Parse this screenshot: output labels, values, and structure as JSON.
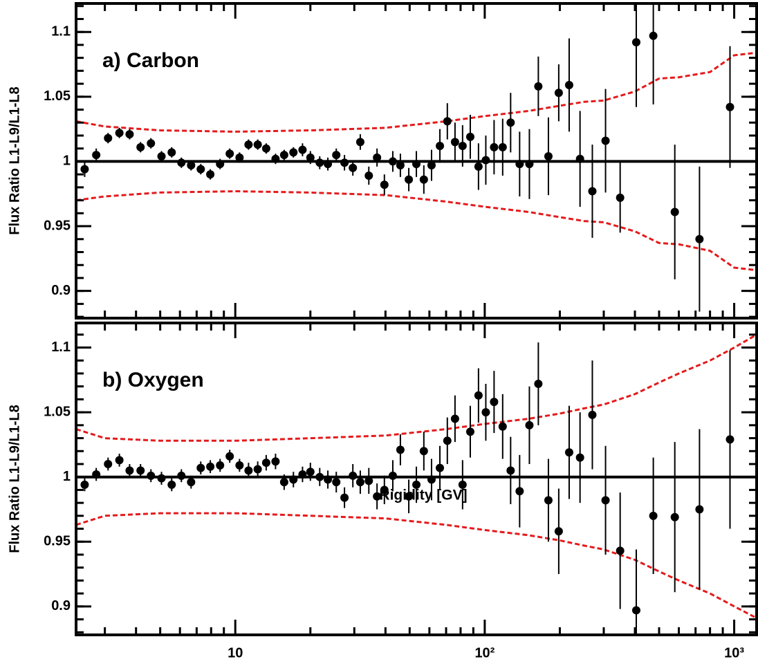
{
  "chart_data": [
    {
      "type": "scatter",
      "title": "a) Carbon",
      "y_label": "Flux Ratio L1-L9/L1-L8",
      "color": "#000000",
      "xscale": "log",
      "reference_line": 1,
      "x": [
        2.49,
        2.77,
        3.09,
        3.43,
        3.77,
        4.17,
        4.59,
        5.06,
        5.56,
        6.08,
        6.65,
        7.27,
        7.94,
        8.69,
        9.5,
        10.4,
        11.3,
        12.3,
        13.3,
        14.5,
        15.7,
        17.1,
        18.6,
        20.0,
        21.8,
        23.5,
        25.4,
        27.4,
        29.6,
        31.7,
        34.3,
        37.0,
        39.6,
        42.8,
        45.9,
        49.6,
        53.2,
        57.0,
        61.2,
        66.1,
        70.8,
        76.0,
        81.5,
        87.5,
        94.4,
        101,
        109,
        118,
        127,
        138,
        151,
        164,
        180,
        198,
        218,
        241,
        270,
        305,
        349,
        405,
        474,
        578,
        726,
        962
      ],
      "values": [
        0.994,
        1.005,
        1.018,
        1.022,
        1.021,
        1.011,
        1.014,
        1.004,
        1.007,
        0.999,
        0.997,
        0.994,
        0.99,
        0.998,
        1.006,
        1.003,
        1.013,
        1.013,
        1.01,
        1.002,
        1.005,
        1.007,
        1.009,
        1.003,
        0.999,
        0.998,
        1.005,
        0.999,
        0.995,
        1.015,
        0.989,
        1.003,
        0.982,
        1.0,
        0.997,
        0.986,
        0.998,
        0.986,
        0.997,
        1.012,
        1.031,
        1.015,
        1.012,
        1.019,
        0.996,
        1.001,
        1.011,
        1.011,
        1.03,
        0.998,
        0.998,
        1.058,
        1.004,
        1.053,
        1.059,
        1.002,
        0.977,
        1.016,
        0.972,
        1.092,
        1.097,
        0.961,
        0.94,
        1.042
      ],
      "errors": [
        0.006,
        0.005,
        0.004,
        0.004,
        0.004,
        0.004,
        0.004,
        0.004,
        0.004,
        0.004,
        0.004,
        0.004,
        0.004,
        0.004,
        0.004,
        0.004,
        0.004,
        0.004,
        0.004,
        0.004,
        0.004,
        0.004,
        0.005,
        0.005,
        0.005,
        0.005,
        0.005,
        0.006,
        0.006,
        0.006,
        0.007,
        0.007,
        0.008,
        0.008,
        0.009,
        0.009,
        0.01,
        0.011,
        0.012,
        0.013,
        0.014,
        0.015,
        0.016,
        0.017,
        0.018,
        0.019,
        0.021,
        0.022,
        0.023,
        0.025,
        0.027,
        0.023,
        0.03,
        0.022,
        0.036,
        0.037,
        0.036,
        0.04,
        0.027,
        0.05,
        0.053,
        0.052,
        0.056,
        0.047
      ],
      "bands": [
        {
          "color": "#e41a1c",
          "x": [
            2.3,
            3,
            5,
            10,
            20,
            40,
            70,
            100,
            150,
            200,
            250,
            300,
            400,
            500,
            600,
            800,
            1000,
            1230
          ],
          "values": [
            1.031,
            1.027,
            1.024,
            1.023,
            1.024,
            1.026,
            1.031,
            1.035,
            1.039,
            1.043,
            1.046,
            1.047,
            1.054,
            1.064,
            1.065,
            1.069,
            1.082,
            1.084
          ]
        },
        {
          "color": "#e41a1c",
          "x": [
            2.3,
            3,
            5,
            10,
            20,
            40,
            70,
            100,
            150,
            200,
            250,
            300,
            400,
            500,
            600,
            800,
            1000,
            1230
          ],
          "values": [
            0.97,
            0.973,
            0.976,
            0.977,
            0.976,
            0.974,
            0.969,
            0.965,
            0.961,
            0.957,
            0.954,
            0.953,
            0.946,
            0.937,
            0.936,
            0.931,
            0.918,
            0.916
          ]
        }
      ],
      "xlim": [
        2.3,
        1230
      ],
      "xticks": [
        10,
        100,
        1000
      ],
      "ylim": [
        0.879,
        1.122
      ],
      "yticks": [
        0.9,
        0.95,
        1,
        1.05,
        1.1
      ]
    },
    {
      "type": "scatter",
      "title": "b) Oxygen",
      "y_label": "Flux Ratio L1-L9/L1-L8",
      "x_label": "Rigidity [GV]",
      "color": "#000000",
      "xscale": "log",
      "reference_line": 1,
      "x": [
        2.49,
        2.77,
        3.09,
        3.43,
        3.77,
        4.17,
        4.59,
        5.06,
        5.56,
        6.08,
        6.65,
        7.27,
        7.94,
        8.69,
        9.5,
        10.4,
        11.3,
        12.3,
        13.3,
        14.5,
        15.7,
        17.1,
        18.6,
        20.0,
        21.8,
        23.5,
        25.4,
        27.4,
        29.6,
        31.7,
        34.3,
        37.0,
        39.6,
        42.8,
        45.9,
        49.6,
        53.2,
        57.0,
        61.2,
        66.1,
        70.8,
        76.0,
        81.5,
        87.5,
        94.4,
        101,
        109,
        118,
        127,
        138,
        151,
        164,
        180,
        198,
        218,
        241,
        270,
        305,
        349,
        405,
        474,
        578,
        726,
        962
      ],
      "values": [
        0.994,
        1.002,
        1.01,
        1.013,
        1.005,
        1.005,
        1.001,
        0.999,
        0.994,
        1.001,
        0.996,
        1.007,
        1.008,
        1.009,
        1.016,
        1.009,
        1.005,
        1.006,
        1.011,
        1.012,
        0.996,
        0.998,
        1.002,
        1.004,
        1.0,
        0.998,
        0.996,
        0.984,
        1.001,
        0.996,
        0.997,
        0.985,
        0.99,
        1.001,
        1.021,
        0.985,
        0.994,
        1.02,
        0.998,
        1.007,
        1.028,
        1.045,
        0.994,
        1.035,
        1.063,
        1.05,
        1.058,
        1.039,
        1.005,
        0.989,
        1.04,
        1.072,
        0.982,
        0.958,
        1.019,
        1.015,
        1.048,
        0.982,
        0.943,
        0.897,
        0.97,
        0.969,
        0.975,
        1.029
      ],
      "errors": [
        0.005,
        0.005,
        0.005,
        0.005,
        0.005,
        0.005,
        0.005,
        0.005,
        0.005,
        0.005,
        0.005,
        0.005,
        0.005,
        0.005,
        0.005,
        0.005,
        0.006,
        0.006,
        0.006,
        0.006,
        0.006,
        0.006,
        0.006,
        0.007,
        0.007,
        0.007,
        0.008,
        0.008,
        0.009,
        0.009,
        0.01,
        0.01,
        0.011,
        0.012,
        0.012,
        0.013,
        0.014,
        0.015,
        0.016,
        0.017,
        0.018,
        0.018,
        0.019,
        0.02,
        0.021,
        0.022,
        0.024,
        0.025,
        0.026,
        0.028,
        0.03,
        0.032,
        0.032,
        0.033,
        0.036,
        0.035,
        0.042,
        0.042,
        0.045,
        0.047,
        0.045,
        0.058,
        0.062,
        0.069
      ],
      "bands": [
        {
          "color": "#e41a1c",
          "x": [
            2.3,
            3,
            5,
            10,
            20,
            40,
            70,
            100,
            150,
            200,
            250,
            300,
            400,
            500,
            600,
            800,
            1000,
            1230
          ],
          "values": [
            1.037,
            1.03,
            1.028,
            1.028,
            1.03,
            1.032,
            1.037,
            1.041,
            1.045,
            1.049,
            1.053,
            1.056,
            1.064,
            1.073,
            1.08,
            1.09,
            1.1,
            1.11
          ]
        },
        {
          "color": "#e41a1c",
          "x": [
            2.3,
            3,
            5,
            10,
            20,
            40,
            70,
            100,
            150,
            200,
            250,
            300,
            400,
            500,
            600,
            800,
            1000,
            1230
          ],
          "values": [
            0.963,
            0.97,
            0.972,
            0.972,
            0.97,
            0.968,
            0.963,
            0.959,
            0.955,
            0.951,
            0.947,
            0.944,
            0.936,
            0.927,
            0.92,
            0.91,
            0.9,
            0.891
          ]
        }
      ],
      "xlim": [
        2.3,
        1230
      ],
      "xticks": [
        10,
        {
          "value": 100,
          "label": "10²"
        },
        {
          "value": 1000,
          "label": "10³"
        }
      ],
      "ylim": [
        0.878,
        1.119
      ],
      "yticks": [
        0.9,
        0.95,
        1,
        1.05,
        1.1
      ]
    }
  ]
}
